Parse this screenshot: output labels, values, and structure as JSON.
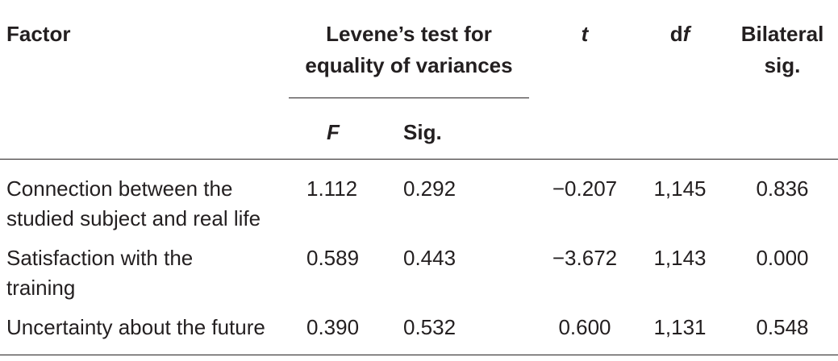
{
  "table": {
    "headers": {
      "factor": "Factor",
      "levene_line1": "Levene’s test for",
      "levene_line2": "equality of variances",
      "t": "t",
      "df_prefix": "d",
      "df_italic": "f",
      "bilateral_line1": "Bilateral",
      "bilateral_line2": "sig.",
      "F": "F",
      "sig": "Sig."
    },
    "rows": [
      {
        "factor_line1": "Connection between the",
        "factor_line2": "studied subject and real life",
        "F": "1.112",
        "sig": "0.292",
        "t": "−0.207",
        "df": "1,145",
        "bilateral": "0.836"
      },
      {
        "factor_line1": "Satisfaction with the",
        "factor_line2": "training",
        "F": "0.589",
        "sig": "0.443",
        "t": "−3.672",
        "df": "1,143",
        "bilateral": "0.000"
      },
      {
        "factor_line1": "Uncertainty about the future",
        "factor_line2": "",
        "F": "0.390",
        "sig": "0.532",
        "t": "0.600",
        "df": "1,131",
        "bilateral": "0.548"
      }
    ]
  }
}
